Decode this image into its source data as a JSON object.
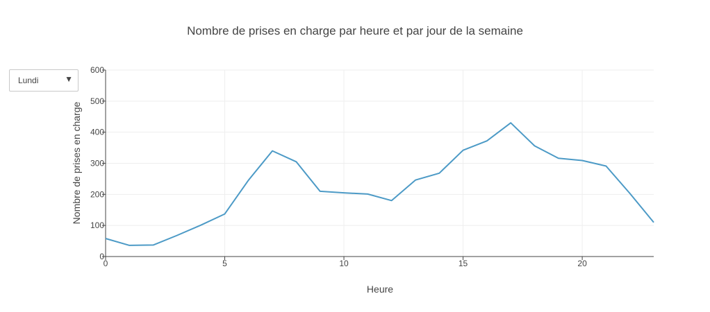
{
  "dropdown": {
    "selected": "Lundi",
    "arrow": "▼"
  },
  "chart_data": {
    "type": "line",
    "title": "Nombre de prises en charge par heure et par jour de la semaine",
    "xlabel": "Heure",
    "ylabel": "Nombre de prises en charge",
    "xlim": [
      0,
      23
    ],
    "ylim": [
      0,
      600
    ],
    "xticks": [
      0,
      5,
      10,
      15,
      20
    ],
    "yticks": [
      0,
      100,
      200,
      300,
      400,
      500,
      600
    ],
    "grid": true,
    "line_color": "#4c9ac6",
    "x": [
      0,
      1,
      2,
      3,
      4,
      5,
      6,
      7,
      8,
      9,
      10,
      11,
      12,
      13,
      14,
      15,
      16,
      17,
      18,
      19,
      20,
      21,
      22,
      23
    ],
    "values": [
      58,
      36,
      37,
      68,
      101,
      137,
      246,
      340,
      305,
      210,
      205,
      201,
      180,
      246,
      268,
      342,
      372,
      430,
      356,
      316,
      309,
      291,
      203,
      110
    ]
  }
}
